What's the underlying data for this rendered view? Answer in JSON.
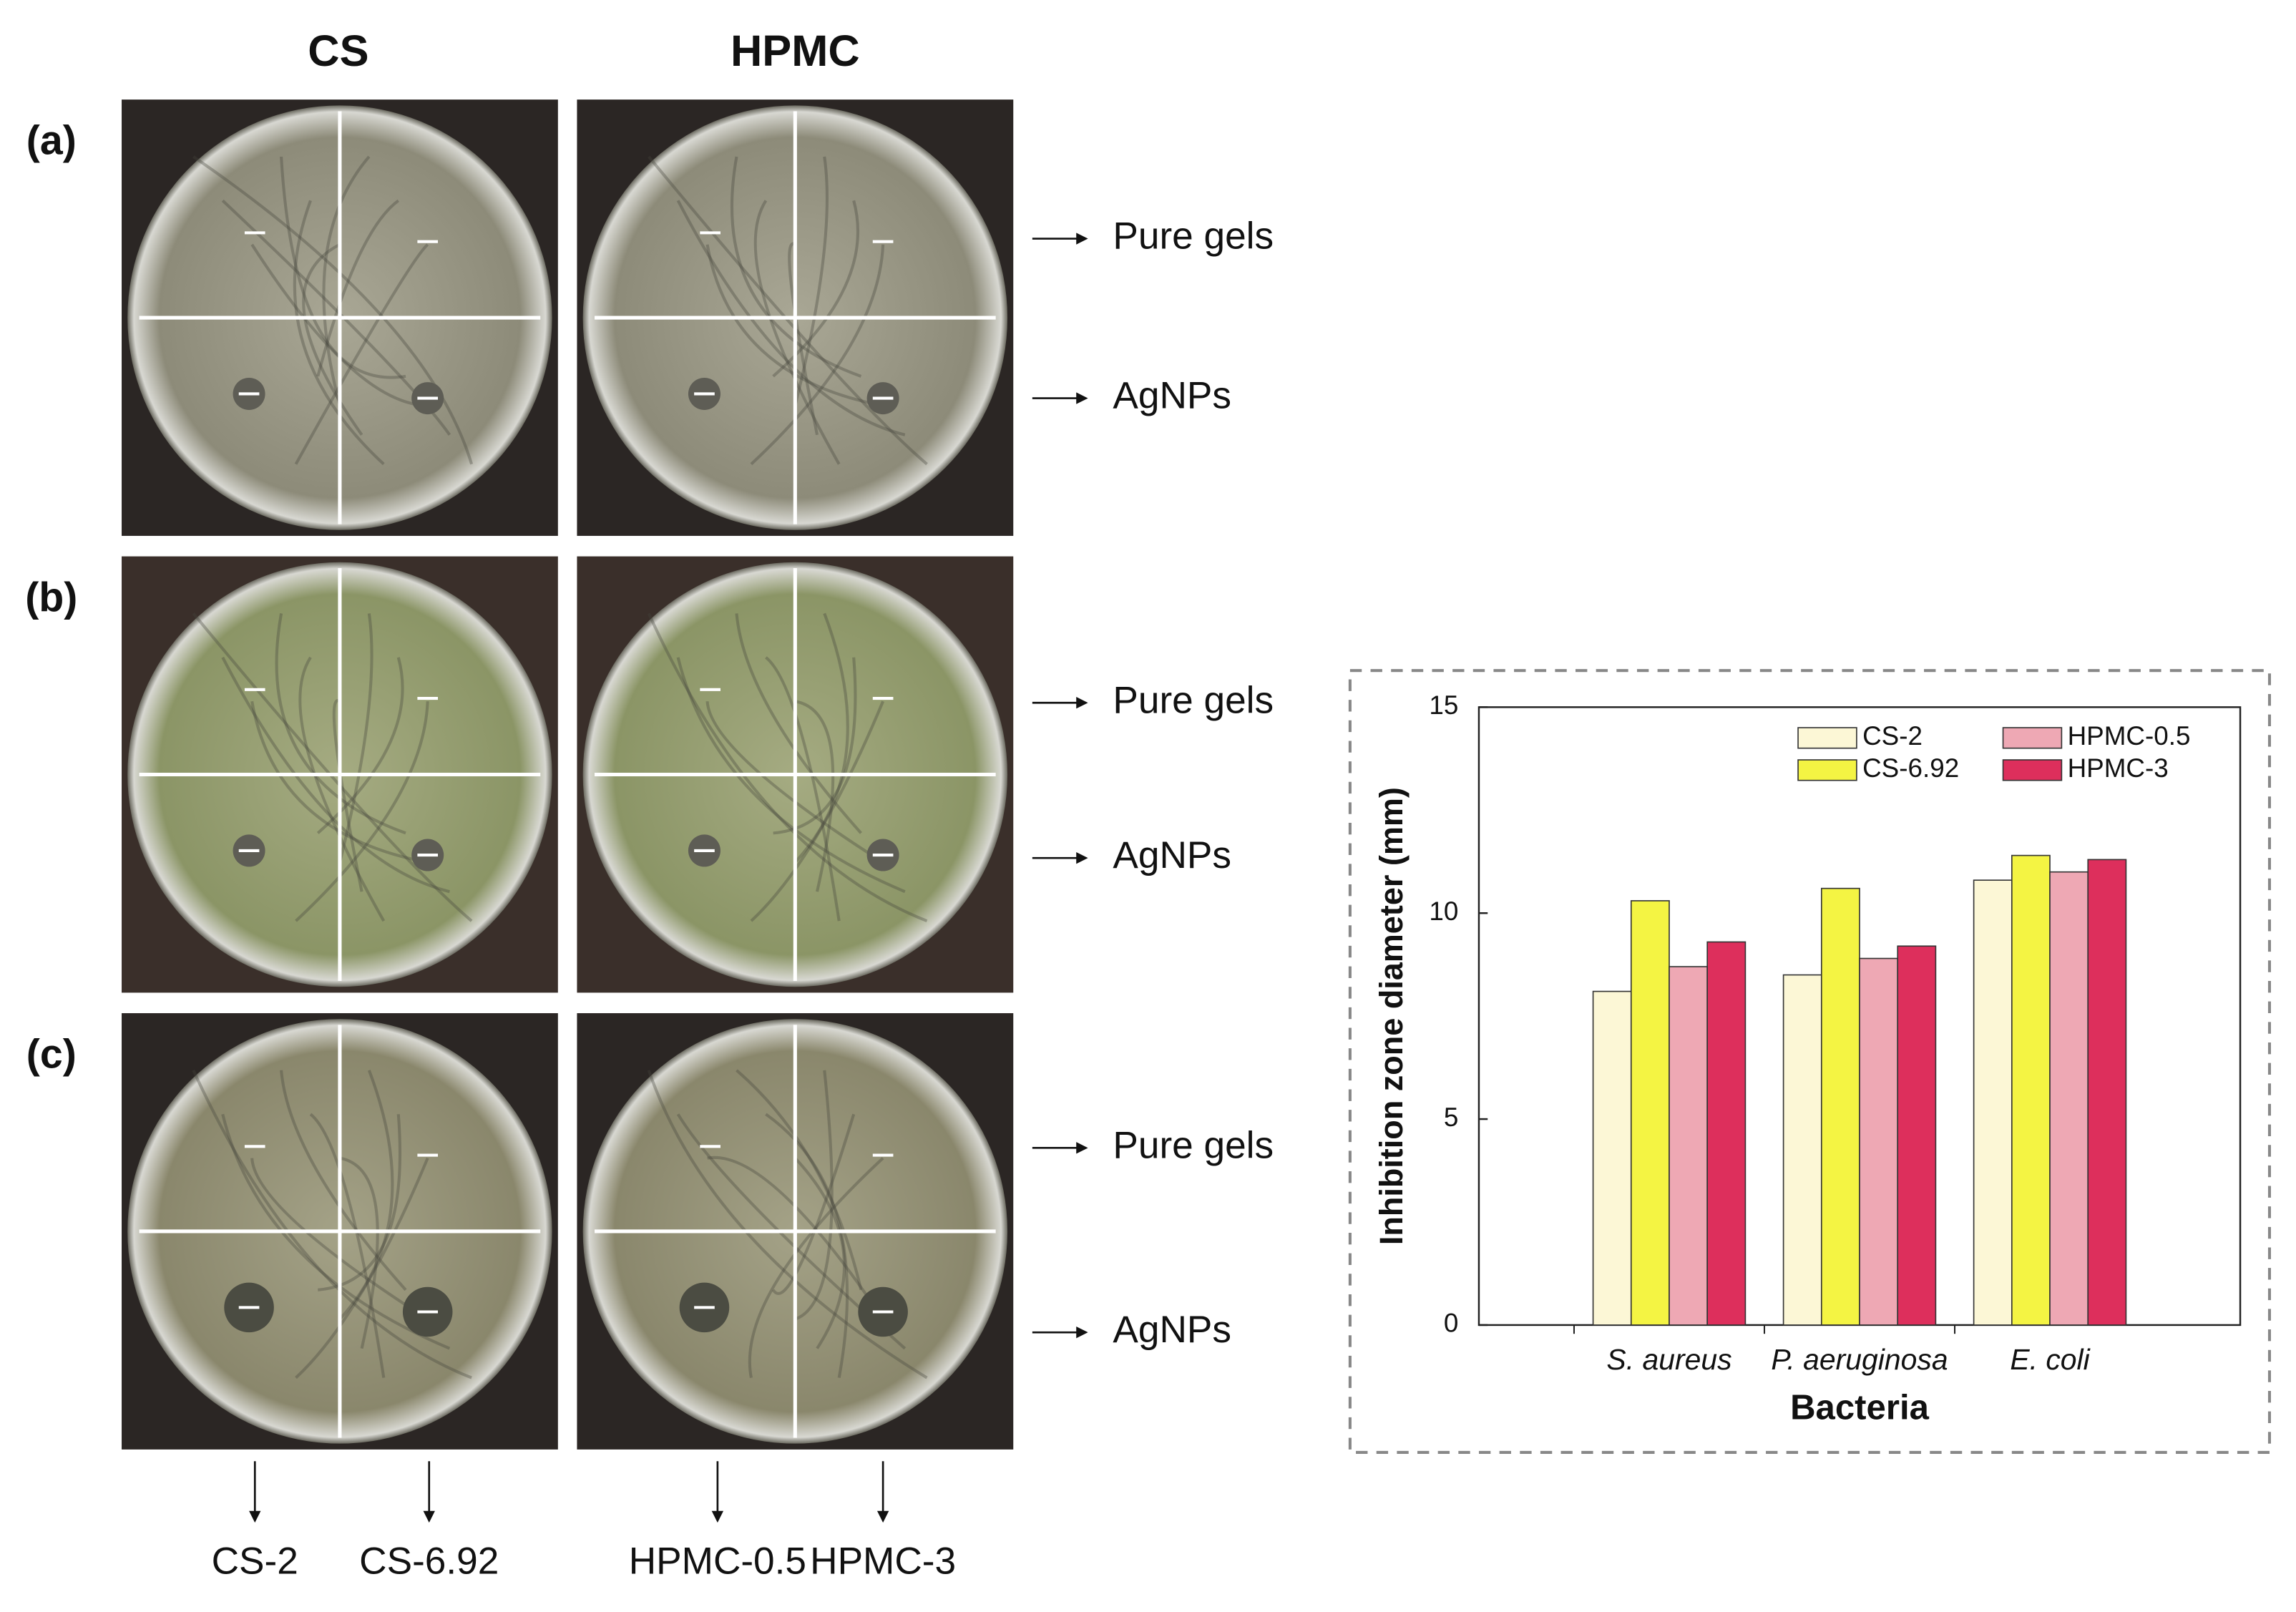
{
  "panels": {
    "columns": [
      "CS",
      "HPMC"
    ],
    "rows": [
      "(a)",
      "(b)",
      "(c)"
    ],
    "annotations": [
      "Pure gels",
      "AgNPs"
    ],
    "samples": [
      "CS-2",
      "CS-6.92",
      "HPMC-0.5",
      "HPMC-3"
    ]
  },
  "chart_data": {
    "type": "bar",
    "x_label": "Bacteria",
    "y_label": "Inhibition zone diameter (mm)",
    "categories": [
      "S. aureus",
      "P. aeruginosa",
      "E. coli"
    ],
    "series": [
      {
        "name": "CS-2",
        "color": "#fcf7d6",
        "values": [
          8.1,
          8.5,
          10.8
        ]
      },
      {
        "name": "CS-6.92",
        "color": "#f4f443",
        "values": [
          10.3,
          10.6,
          11.4
        ]
      },
      {
        "name": "HPMC-0.5",
        "color": "#eea8b4",
        "values": [
          8.7,
          8.9,
          11.0
        ]
      },
      {
        "name": "HPMC-3",
        "color": "#dd2f5c",
        "values": [
          9.3,
          9.2,
          11.3
        ]
      }
    ],
    "ylim": [
      0,
      15
    ],
    "yticks": [
      0,
      5,
      10,
      15
    ],
    "legend": "top-right"
  }
}
